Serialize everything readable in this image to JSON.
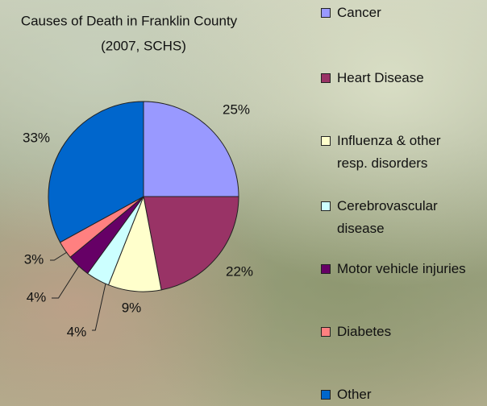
{
  "chart_data": {
    "type": "pie",
    "title": "Causes of Death in Franklin County",
    "subtitle": "(2007, SCHS)",
    "categories": [
      "Cancer",
      "Heart Disease",
      "Influenza & other resp. disorders",
      "Cerebrovascular disease",
      "Motor vehicle injuries",
      "Diabetes",
      "Other"
    ],
    "values": [
      25,
      22,
      9,
      4,
      4,
      3,
      33
    ],
    "value_labels": [
      "25%",
      "22%",
      "9%",
      "4%",
      "4%",
      "3%",
      "33%"
    ],
    "colors": [
      "#9999ff",
      "#993366",
      "#ffffcc",
      "#ccffff",
      "#660066",
      "#ff8080",
      "#0066cc"
    ]
  }
}
